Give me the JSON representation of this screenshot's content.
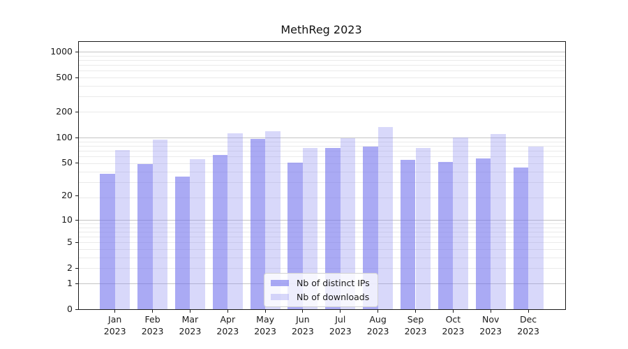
{
  "title": "MethReg 2023",
  "legend": {
    "items": [
      {
        "label": "Nb of distinct IPs"
      },
      {
        "label": "Nb of downloads"
      }
    ]
  },
  "colors": {
    "bar_distinct_ips": "rgba(113,113,236,0.60)",
    "bar_downloads": "rgba(148,148,242,0.36)",
    "grid_major": "#c4c4c4",
    "grid_minor": "#eaeaea",
    "spine": "#1a1a1a",
    "text": "#1a1a1a",
    "background": "#ffffff"
  },
  "chart_data": {
    "type": "bar",
    "title": "MethReg 2023",
    "categories": [
      "Jan 2023",
      "Feb 2023",
      "Mar 2023",
      "Apr 2023",
      "May 2023",
      "Jun 2023",
      "Jul 2023",
      "Aug 2023",
      "Sep 2023",
      "Oct 2023",
      "Nov 2023",
      "Dec 2023"
    ],
    "series": [
      {
        "name": "Nb of distinct IPs",
        "color": "rgba(113,113,236,0.60)",
        "values": [
          37,
          48,
          34,
          62,
          95,
          50,
          75,
          78,
          54,
          51,
          56,
          44
        ]
      },
      {
        "name": "Nb of downloads",
        "color": "rgba(148,148,242,0.36)",
        "values": [
          70,
          93,
          55,
          111,
          117,
          75,
          97,
          132,
          75,
          100,
          110,
          78
        ]
      }
    ],
    "xlabel": "",
    "ylabel": "",
    "yscale": "log1p",
    "ylim": [
      0,
      1300
    ],
    "yticks": [
      1000,
      500,
      200,
      100,
      50,
      20,
      10,
      5,
      2,
      1,
      0
    ],
    "grid": "both",
    "grid_major": [
      1,
      10,
      100,
      1000
    ],
    "grid_minor": [
      2,
      3,
      4,
      5,
      6,
      7,
      8,
      9,
      19,
      29,
      39,
      49,
      59,
      69,
      79,
      89,
      99,
      199,
      299,
      399,
      499,
      599,
      699,
      799,
      899,
      999
    ],
    "legend_position": "lower center"
  }
}
